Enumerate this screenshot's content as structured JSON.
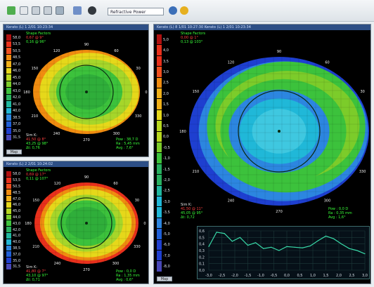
{
  "toolbar": {
    "icons": [
      "back-icon",
      "forward-icon",
      "grid-icon",
      "print-icon",
      "settings-icon",
      "cursor-icon",
      "eye-icon",
      "arrow-icon"
    ],
    "select_value": "Refractive Power"
  },
  "panels": [
    {
      "id": "top-left",
      "title": "Kerato (L) 1 2/01 10:23:34",
      "shape_title": "Shape Factors",
      "shape_lines": [
        "0,67 @ 9°",
        "0,16 @ 96°"
      ],
      "sim_title": "Sim K:",
      "sim_lines": [
        "41,50 @ 8°",
        "43,25 @ 98°",
        "Δt: 0,76"
      ],
      "right_lines": [
        "Pow : 38,7 D",
        "Ra : 5,45 mm",
        "Avg : 7,6°"
      ],
      "button": "Map",
      "scale_labels": [
        "58,0",
        "53,5",
        "50,5",
        "48,5",
        "47,0",
        "46,0",
        "45,0",
        "44,0",
        "43,0",
        "42,0",
        "41,0",
        "40,0",
        "38,5",
        "37,0",
        "35,0",
        "31,5"
      ]
    },
    {
      "id": "bottom-left",
      "title": "Kerato (L) 2 2/01 10:24:02",
      "shape_title": "Shape Factors",
      "shape_lines": [
        "0,69 @ 17°",
        "0,11 @ 107°"
      ],
      "sim_title": "Sim K:",
      "sim_lines": [
        "41,80 @ 7°",
        "43,10 @ 97°",
        "Δt: 0,71"
      ],
      "right_lines": [
        "Pow : 0,0 D",
        "Ra : 1,35 mm",
        "Avg : 0,6°"
      ],
      "button": "Map",
      "scale_labels": [
        "58,0",
        "53,5",
        "50,5",
        "48,5",
        "47,0",
        "46,0",
        "45,0",
        "44,0",
        "43,0",
        "42,0",
        "41,0",
        "40,0",
        "38,5",
        "37,0",
        "35,0",
        "31,5"
      ]
    },
    {
      "id": "right",
      "title": "Kerato (L) 8 1/01 10:27:30 Kerato (L) 1 2/01 10:23:34",
      "shape_title": "Shape Factors",
      "shape_lines": [
        "0,00 @ 1°",
        "0,13 @ 103°"
      ],
      "sim_title": "Sim K:",
      "sim_lines": [
        "41,50 @ 11°",
        "45,05 @ 95°",
        "Δt: 0,72"
      ],
      "right_lines": [
        "Pow : 0,0 D",
        "Ra : 0,35 mm",
        "Avg : 1,6°"
      ],
      "button": "Map",
      "scale_labels": [
        "5,0",
        "4,0",
        "3,5",
        "3,0",
        "2,5",
        "2,0",
        "1,5",
        "1,0",
        "0,5",
        "0,0",
        "-0,5",
        "-1,0",
        "-1,5",
        "-2,0",
        "-2,5",
        "-3,0",
        "-3,5",
        "-4,0",
        "-5,0",
        "-6,0",
        "-7,0",
        "-8,0"
      ]
    }
  ],
  "meridians": [
    "0",
    "30",
    "60",
    "90",
    "120",
    "150",
    "180",
    "210",
    "240",
    "270",
    "300",
    "330"
  ],
  "profile": {
    "y_ticks": [
      "0,6",
      "0,5",
      "0,4",
      "0,3",
      "0,2",
      "0,1",
      "0,0"
    ],
    "x_ticks": [
      "-3,0",
      "-2,5",
      "-2,0",
      "-1,5",
      "-1,0",
      "-0,5",
      "0,0",
      "0,5",
      "1,0",
      "1,5",
      "2,0",
      "2,5",
      "3,0"
    ],
    "x": [
      -3.0,
      -2.7,
      -2.4,
      -2.1,
      -1.8,
      -1.5,
      -1.2,
      -0.9,
      -0.6,
      -0.3,
      0.0,
      0.3,
      0.6,
      0.9,
      1.2,
      1.5,
      1.8,
      2.1,
      2.4,
      2.7,
      3.0
    ],
    "y": [
      0.36,
      0.58,
      0.56,
      0.44,
      0.5,
      0.38,
      0.42,
      0.33,
      0.35,
      0.3,
      0.36,
      0.35,
      0.34,
      0.37,
      0.45,
      0.52,
      0.48,
      0.4,
      0.33,
      0.3,
      0.25
    ],
    "ylim": [
      0,
      0.6
    ],
    "line_color": "#38d9a8"
  },
  "colors": {
    "map_red": "#e8301c",
    "map_orange": "#f08c10",
    "map_yellow": "#e6d81a",
    "map_green": "#3cc23c",
    "map_cyan": "#20b8d8",
    "map_blue": "#1e3fd0",
    "text_green": "#39ff39",
    "text_red": "#ff4040"
  }
}
